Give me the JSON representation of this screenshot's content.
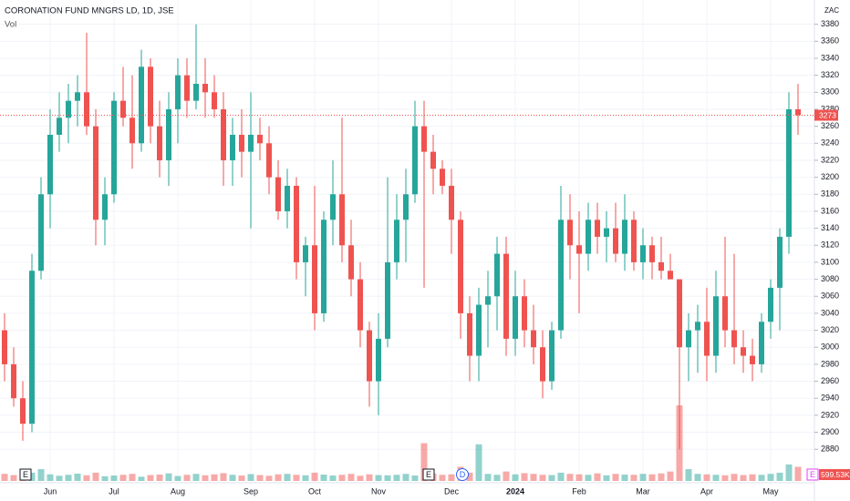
{
  "chart_data": {
    "type": "candlestick",
    "title": "CORONATION FUND MNGRS LD, 1D, JSE",
    "volume_title": "Vol",
    "currency": "ZAC",
    "up_color": "#26a69a",
    "down_color": "#ef5350",
    "grid": true,
    "ylim": [
      2862,
      3400
    ],
    "yticks": [
      2880,
      2900,
      2920,
      2940,
      2960,
      2980,
      3000,
      3020,
      3040,
      3060,
      3080,
      3100,
      3120,
      3140,
      3160,
      3180,
      3200,
      3220,
      3240,
      3260,
      3280,
      3300,
      3320,
      3340,
      3360,
      3380
    ],
    "categories": [
      null,
      null,
      null,
      null,
      null,
      "Jun",
      null,
      null,
      null,
      null,
      null,
      null,
      "Jul",
      null,
      null,
      null,
      null,
      null,
      null,
      "Aug",
      null,
      null,
      null,
      null,
      null,
      null,
      null,
      "Sep",
      null,
      null,
      null,
      null,
      null,
      null,
      "Oct",
      null,
      null,
      null,
      null,
      null,
      null,
      "Nov",
      null,
      null,
      null,
      null,
      null,
      null,
      null,
      "Dec",
      null,
      null,
      null,
      null,
      null,
      null,
      "2024",
      null,
      null,
      null,
      null,
      null,
      null,
      "Feb",
      null,
      null,
      null,
      null,
      null,
      null,
      "Mar",
      null,
      null,
      null,
      null,
      null,
      null,
      "Apr",
      null,
      null,
      null,
      null,
      null,
      null,
      "May",
      null,
      null,
      null
    ],
    "open": [
      3020,
      2980,
      2940,
      2910,
      3090,
      3180,
      3250,
      3270,
      3290,
      3300,
      3260,
      3150,
      3180,
      3290,
      3270,
      3240,
      3330,
      3260,
      3220,
      3280,
      3320,
      3290,
      3310,
      3300,
      3280,
      3220,
      3250,
      3230,
      3250,
      3240,
      3200,
      3160,
      3190,
      3100,
      3120,
      3040,
      3150,
      3180,
      3120,
      3080,
      3020,
      2960,
      3010,
      3100,
      3150,
      3180,
      3260,
      3230,
      3210,
      3190,
      3150,
      3040,
      2990,
      3050,
      3060,
      3110,
      3010,
      3060,
      3020,
      3000,
      2960,
      3020,
      3150,
      3120,
      3110,
      3150,
      3130,
      3140,
      3110,
      3150,
      3100,
      3120,
      3100,
      3090,
      3080,
      3000,
      3020,
      3030,
      2990,
      3060,
      3020,
      3000,
      2990,
      2980,
      3030,
      3070,
      3130,
      3280
    ],
    "high": [
      3040,
      3000,
      2960,
      3110,
      3200,
      3280,
      3300,
      3310,
      3320,
      3370,
      3280,
      3200,
      3300,
      3330,
      3320,
      3350,
      3340,
      3290,
      3300,
      3340,
      3340,
      3380,
      3340,
      3320,
      3300,
      3270,
      3280,
      3300,
      3270,
      3260,
      3220,
      3210,
      3200,
      3130,
      3190,
      3160,
      3220,
      3270,
      3150,
      3100,
      3030,
      3040,
      3200,
      3180,
      3210,
      3290,
      3290,
      3250,
      3220,
      3210,
      3160,
      3060,
      3070,
      3090,
      3130,
      3130,
      3090,
      3080,
      3050,
      3020,
      3030,
      3190,
      3180,
      3160,
      3170,
      3170,
      3160,
      3170,
      3180,
      3160,
      3140,
      3130,
      3130,
      3110,
      3080,
      3040,
      3050,
      3070,
      3090,
      3130,
      3110,
      3020,
      3010,
      3040,
      3080,
      3140,
      3300,
      3310
    ],
    "low": [
      2960,
      2930,
      2890,
      2900,
      3080,
      3140,
      3230,
      3240,
      3260,
      3250,
      3120,
      3120,
      3170,
      3260,
      3210,
      3230,
      3240,
      3200,
      3190,
      3240,
      3270,
      3280,
      3270,
      3270,
      3190,
      3190,
      3200,
      3140,
      3220,
      3180,
      3150,
      3140,
      3080,
      3060,
      3020,
      3030,
      3120,
      3100,
      3060,
      3000,
      2930,
      2920,
      3000,
      3080,
      3100,
      3170,
      3070,
      3180,
      3180,
      3110,
      3010,
      2960,
      2960,
      3000,
      3020,
      2990,
      2990,
      3000,
      2980,
      2940,
      2950,
      3010,
      3080,
      3040,
      3090,
      3110,
      3100,
      3100,
      3090,
      3090,
      3080,
      3080,
      3080,
      3080,
      2880,
      2960,
      2970,
      2960,
      2970,
      3000,
      2980,
      2970,
      2960,
      2970,
      3010,
      3020,
      3110,
      3250
    ],
    "close": [
      2980,
      2940,
      2910,
      3090,
      3180,
      3250,
      3270,
      3290,
      3300,
      3260,
      3150,
      3180,
      3290,
      3270,
      3240,
      3330,
      3260,
      3220,
      3280,
      3320,
      3290,
      3310,
      3300,
      3280,
      3220,
      3250,
      3230,
      3250,
      3240,
      3200,
      3160,
      3190,
      3100,
      3120,
      3040,
      3150,
      3180,
      3120,
      3080,
      3020,
      2960,
      3010,
      3100,
      3150,
      3180,
      3260,
      3230,
      3210,
      3190,
      3150,
      3040,
      2990,
      3050,
      3060,
      3110,
      3010,
      3060,
      3020,
      3000,
      2960,
      3020,
      3150,
      3120,
      3110,
      3150,
      3130,
      3140,
      3110,
      3150,
      3100,
      3120,
      3100,
      3090,
      3080,
      3000,
      3020,
      3030,
      2990,
      3060,
      3020,
      3000,
      2990,
      2980,
      3030,
      3070,
      3130,
      3280,
      3273
    ],
    "volume": [
      300000,
      250000,
      400000,
      350000,
      500000,
      280000,
      220000,
      260000,
      310000,
      240000,
      350000,
      200000,
      230000,
      260000,
      300000,
      180000,
      250000,
      270000,
      320000,
      210000,
      260000,
      300000,
      240000,
      280000,
      330000,
      260000,
      230000,
      290000,
      250000,
      220000,
      280000,
      300000,
      260000,
      240000,
      350000,
      270000,
      230000,
      260000,
      300000,
      220000,
      280000,
      250000,
      240000,
      260000,
      300000,
      230000,
      1600000,
      320000,
      260000,
      280000,
      600000,
      350000,
      1550000,
      300000,
      260000,
      400000,
      280000,
      330000,
      300000,
      260000,
      250000,
      350000,
      300000,
      280000,
      260000,
      320000,
      240000,
      300000,
      270000,
      260000,
      300000,
      280000,
      320000,
      400000,
      3200000,
      500000,
      300000,
      280000,
      260000,
      240000,
      300000,
      250000,
      280000,
      260000,
      300000,
      350000,
      700000,
      599530
    ],
    "volume_value_labels": [
      null,
      null,
      null,
      null,
      null,
      null,
      null,
      null,
      null,
      null,
      null,
      null,
      null,
      null,
      null,
      null,
      null,
      null,
      null,
      null,
      null,
      null,
      null,
      null,
      null,
      null,
      null,
      null,
      null,
      null,
      null,
      null,
      null,
      null,
      null,
      null,
      null,
      null,
      null,
      null,
      null,
      null,
      null,
      null,
      null,
      null,
      null,
      null,
      null,
      null,
      null,
      null,
      null,
      null,
      null,
      null,
      null,
      null,
      null,
      null,
      null,
      null,
      null,
      null,
      null,
      null,
      null,
      null,
      null,
      null,
      null,
      null,
      null,
      null,
      null,
      null,
      null,
      null,
      null,
      null,
      null,
      null,
      null,
      null,
      null,
      null,
      null,
      "599.53K"
    ],
    "events": [
      "E",
      "E",
      "D",
      "E"
    ]
  }
}
